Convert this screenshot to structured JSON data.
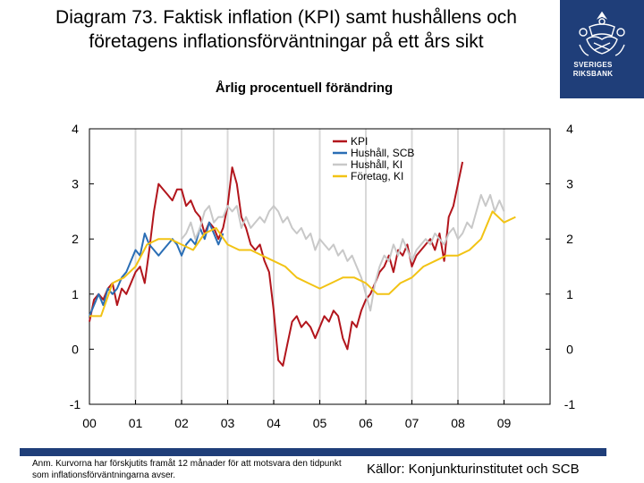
{
  "header": {
    "title": "Diagram 73. Faktisk inflation (KPI) samt hushållens och företagens inflationsförväntningar på ett års sikt",
    "subtitle": "Årlig procentuell förändring",
    "logo_text": "SVERIGES RIKSBANK"
  },
  "footer": {
    "note": "Anm. Kurvorna har förskjutits framåt 12 månader för att motsvara den tidpunkt som inflationsförväntningarna avser.",
    "source": "Källor: Konjunkturinstitutet och SCB"
  },
  "colors": {
    "kpi": "#b2151c",
    "hushall_scb": "#2a6eb5",
    "hushall_ki": "#c8c8c8",
    "foretag_ki": "#f2c314",
    "brand": "#1f3e79"
  },
  "chart_data": {
    "type": "line",
    "title": "",
    "xlabel": "",
    "ylabel": "",
    "x_tick_labels": [
      "00",
      "01",
      "02",
      "03",
      "04",
      "05",
      "06",
      "07",
      "08",
      "09"
    ],
    "y_ticks": [
      "-1",
      "0",
      "1",
      "2",
      "3",
      "4"
    ],
    "xlim": [
      2000.0,
      2010.0
    ],
    "ylim": [
      -1,
      4
    ],
    "grid": "vertical",
    "legend_position": "top-right",
    "dual_y_axis": true,
    "series": [
      {
        "name": "KPI",
        "color_key": "kpi",
        "points": [
          [
            2000.0,
            0.5
          ],
          [
            2000.1,
            0.9
          ],
          [
            2000.2,
            1.0
          ],
          [
            2000.3,
            0.9
          ],
          [
            2000.4,
            1.1
          ],
          [
            2000.5,
            1.2
          ],
          [
            2000.6,
            0.8
          ],
          [
            2000.7,
            1.1
          ],
          [
            2000.8,
            1.0
          ],
          [
            2000.9,
            1.2
          ],
          [
            2001.0,
            1.4
          ],
          [
            2001.1,
            1.5
          ],
          [
            2001.2,
            1.2
          ],
          [
            2001.3,
            1.8
          ],
          [
            2001.4,
            2.5
          ],
          [
            2001.5,
            3.0
          ],
          [
            2001.6,
            2.9
          ],
          [
            2001.7,
            2.8
          ],
          [
            2001.8,
            2.7
          ],
          [
            2001.9,
            2.9
          ],
          [
            2002.0,
            2.9
          ],
          [
            2002.1,
            2.6
          ],
          [
            2002.2,
            2.7
          ],
          [
            2002.3,
            2.5
          ],
          [
            2002.4,
            2.4
          ],
          [
            2002.5,
            2.1
          ],
          [
            2002.6,
            2.3
          ],
          [
            2002.7,
            2.2
          ],
          [
            2002.8,
            2.0
          ],
          [
            2002.9,
            2.2
          ],
          [
            2003.0,
            2.6
          ],
          [
            2003.1,
            3.3
          ],
          [
            2003.2,
            3.0
          ],
          [
            2003.3,
            2.4
          ],
          [
            2003.4,
            2.2
          ],
          [
            2003.5,
            1.9
          ],
          [
            2003.6,
            1.8
          ],
          [
            2003.7,
            1.9
          ],
          [
            2003.8,
            1.6
          ],
          [
            2003.9,
            1.4
          ],
          [
            2004.0,
            0.7
          ],
          [
            2004.1,
            -0.2
          ],
          [
            2004.2,
            -0.3
          ],
          [
            2004.3,
            0.1
          ],
          [
            2004.4,
            0.5
          ],
          [
            2004.5,
            0.6
          ],
          [
            2004.6,
            0.4
          ],
          [
            2004.7,
            0.5
          ],
          [
            2004.8,
            0.4
          ],
          [
            2004.9,
            0.2
          ],
          [
            2005.0,
            0.4
          ],
          [
            2005.1,
            0.6
          ],
          [
            2005.2,
            0.5
          ],
          [
            2005.3,
            0.7
          ],
          [
            2005.4,
            0.6
          ],
          [
            2005.5,
            0.2
          ],
          [
            2005.6,
            0.0
          ],
          [
            2005.7,
            0.5
          ],
          [
            2005.8,
            0.4
          ],
          [
            2005.9,
            0.7
          ],
          [
            2006.0,
            0.9
          ],
          [
            2006.1,
            1.0
          ],
          [
            2006.2,
            1.2
          ],
          [
            2006.3,
            1.4
          ],
          [
            2006.4,
            1.5
          ],
          [
            2006.5,
            1.7
          ],
          [
            2006.6,
            1.4
          ],
          [
            2006.7,
            1.8
          ],
          [
            2006.8,
            1.7
          ],
          [
            2006.9,
            1.9
          ],
          [
            2007.0,
            1.5
          ],
          [
            2007.1,
            1.7
          ],
          [
            2007.2,
            1.8
          ],
          [
            2007.3,
            1.9
          ],
          [
            2007.4,
            2.0
          ],
          [
            2007.5,
            1.8
          ],
          [
            2007.6,
            2.1
          ],
          [
            2007.7,
            1.6
          ],
          [
            2007.8,
            2.4
          ],
          [
            2007.9,
            2.6
          ],
          [
            2008.0,
            3.0
          ],
          [
            2008.1,
            3.4
          ]
        ]
      },
      {
        "name": "Hushåll, SCB",
        "color_key": "hushall_scb",
        "points": [
          [
            2000.0,
            0.6
          ],
          [
            2000.1,
            0.8
          ],
          [
            2000.2,
            1.0
          ],
          [
            2000.3,
            0.8
          ],
          [
            2000.4,
            1.1
          ],
          [
            2000.5,
            1.0
          ],
          [
            2000.6,
            1.1
          ],
          [
            2000.7,
            1.3
          ],
          [
            2000.8,
            1.4
          ],
          [
            2000.9,
            1.6
          ],
          [
            2001.0,
            1.8
          ],
          [
            2001.1,
            1.7
          ],
          [
            2001.2,
            2.1
          ],
          [
            2001.3,
            1.9
          ],
          [
            2001.4,
            1.8
          ],
          [
            2001.5,
            1.7
          ],
          [
            2001.6,
            1.8
          ],
          [
            2001.7,
            1.9
          ],
          [
            2001.8,
            2.0
          ],
          [
            2001.9,
            1.9
          ],
          [
            2002.0,
            1.7
          ],
          [
            2002.1,
            1.9
          ],
          [
            2002.2,
            2.0
          ],
          [
            2002.3,
            1.9
          ],
          [
            2002.4,
            2.2
          ],
          [
            2002.5,
            2.0
          ],
          [
            2002.6,
            2.3
          ],
          [
            2002.7,
            2.1
          ],
          [
            2002.8,
            1.9
          ],
          [
            2002.9,
            2.1
          ]
        ]
      },
      {
        "name": "Hushåll, KI",
        "color_key": "hushall_ki",
        "points": [
          [
            2002.0,
            2.0
          ],
          [
            2002.1,
            2.1
          ],
          [
            2002.2,
            2.3
          ],
          [
            2002.3,
            2.0
          ],
          [
            2002.4,
            2.2
          ],
          [
            2002.5,
            2.5
          ],
          [
            2002.6,
            2.6
          ],
          [
            2002.7,
            2.3
          ],
          [
            2002.8,
            2.4
          ],
          [
            2002.9,
            2.4
          ],
          [
            2003.0,
            2.6
          ],
          [
            2003.1,
            2.5
          ],
          [
            2003.2,
            2.6
          ],
          [
            2003.3,
            2.2
          ],
          [
            2003.4,
            2.4
          ],
          [
            2003.5,
            2.2
          ],
          [
            2003.6,
            2.3
          ],
          [
            2003.7,
            2.4
          ],
          [
            2003.8,
            2.3
          ],
          [
            2003.9,
            2.5
          ],
          [
            2004.0,
            2.6
          ],
          [
            2004.1,
            2.5
          ],
          [
            2004.2,
            2.3
          ],
          [
            2004.3,
            2.4
          ],
          [
            2004.4,
            2.2
          ],
          [
            2004.5,
            2.1
          ],
          [
            2004.6,
            2.2
          ],
          [
            2004.7,
            2.0
          ],
          [
            2004.8,
            2.1
          ],
          [
            2004.9,
            1.8
          ],
          [
            2005.0,
            2.0
          ],
          [
            2005.1,
            1.9
          ],
          [
            2005.2,
            1.8
          ],
          [
            2005.3,
            1.9
          ],
          [
            2005.4,
            1.7
          ],
          [
            2005.5,
            1.8
          ],
          [
            2005.6,
            1.6
          ],
          [
            2005.7,
            1.7
          ],
          [
            2005.8,
            1.5
          ],
          [
            2005.9,
            1.3
          ],
          [
            2006.0,
            1.0
          ],
          [
            2006.1,
            0.7
          ],
          [
            2006.2,
            1.2
          ],
          [
            2006.3,
            1.5
          ],
          [
            2006.4,
            1.7
          ],
          [
            2006.5,
            1.6
          ],
          [
            2006.6,
            1.9
          ],
          [
            2006.7,
            1.7
          ],
          [
            2006.8,
            2.0
          ],
          [
            2006.9,
            1.8
          ],
          [
            2007.0,
            1.6
          ],
          [
            2007.1,
            1.8
          ],
          [
            2007.2,
            1.9
          ],
          [
            2007.3,
            2.0
          ],
          [
            2007.4,
            1.9
          ],
          [
            2007.5,
            2.1
          ],
          [
            2007.6,
            2.0
          ],
          [
            2007.7,
            1.9
          ],
          [
            2007.8,
            2.1
          ],
          [
            2007.9,
            2.2
          ],
          [
            2008.0,
            2.0
          ],
          [
            2008.1,
            2.1
          ],
          [
            2008.2,
            2.3
          ],
          [
            2008.3,
            2.2
          ],
          [
            2008.4,
            2.5
          ],
          [
            2008.5,
            2.8
          ],
          [
            2008.6,
            2.6
          ],
          [
            2008.7,
            2.8
          ],
          [
            2008.8,
            2.5
          ],
          [
            2008.9,
            2.7
          ],
          [
            2009.0,
            2.5
          ]
        ]
      },
      {
        "name": "Företag, KI",
        "color_key": "foretag_ki",
        "points": [
          [
            2000.0,
            0.6
          ],
          [
            2000.25,
            0.6
          ],
          [
            2000.5,
            1.2
          ],
          [
            2000.75,
            1.3
          ],
          [
            2001.0,
            1.5
          ],
          [
            2001.25,
            1.9
          ],
          [
            2001.5,
            2.0
          ],
          [
            2001.75,
            2.0
          ],
          [
            2002.0,
            1.9
          ],
          [
            2002.25,
            1.8
          ],
          [
            2002.5,
            2.1
          ],
          [
            2002.75,
            2.2
          ],
          [
            2003.0,
            1.9
          ],
          [
            2003.25,
            1.8
          ],
          [
            2003.5,
            1.8
          ],
          [
            2003.75,
            1.7
          ],
          [
            2004.0,
            1.6
          ],
          [
            2004.25,
            1.5
          ],
          [
            2004.5,
            1.3
          ],
          [
            2004.75,
            1.2
          ],
          [
            2005.0,
            1.1
          ],
          [
            2005.25,
            1.2
          ],
          [
            2005.5,
            1.3
          ],
          [
            2005.75,
            1.3
          ],
          [
            2006.0,
            1.2
          ],
          [
            2006.25,
            1.0
          ],
          [
            2006.5,
            1.0
          ],
          [
            2006.75,
            1.2
          ],
          [
            2007.0,
            1.3
          ],
          [
            2007.25,
            1.5
          ],
          [
            2007.5,
            1.6
          ],
          [
            2007.75,
            1.7
          ],
          [
            2008.0,
            1.7
          ],
          [
            2008.25,
            1.8
          ],
          [
            2008.5,
            2.0
          ],
          [
            2008.75,
            2.5
          ],
          [
            2009.0,
            2.3
          ],
          [
            2009.25,
            2.4
          ]
        ]
      }
    ]
  }
}
